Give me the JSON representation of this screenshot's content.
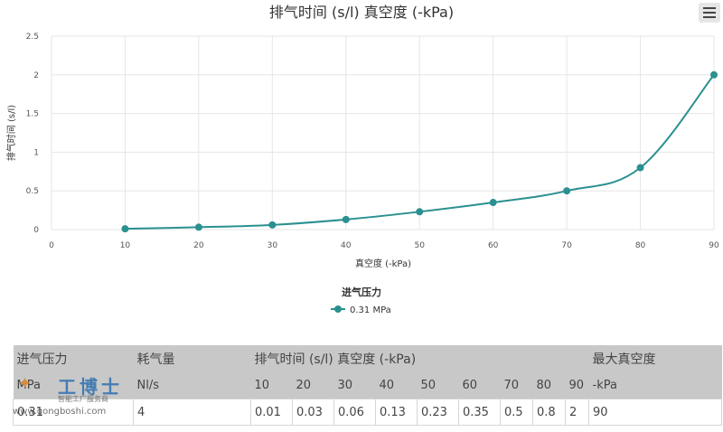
{
  "menu_icon": "hamburger-menu-icon",
  "chart_data": {
    "type": "line",
    "title": "排气时间 (s/l) 真空度 (-kPa)",
    "xlabel": "真空度 (-kPa)",
    "ylabel": "排气时间 (s/l)",
    "xlim": [
      0,
      90
    ],
    "ylim": [
      0,
      2.5
    ],
    "x_ticks": [
      "0",
      "10",
      "20",
      "30",
      "40",
      "50",
      "60",
      "70",
      "80",
      "90"
    ],
    "y_ticks": [
      "0",
      "0.5",
      "1",
      "1.5",
      "2",
      "2.5"
    ],
    "grid": true,
    "legend_title": "进气压力",
    "legend_position": "bottom-center",
    "color": "#2a9090",
    "series": [
      {
        "name": "0.31 MPa",
        "x": [
          10,
          20,
          30,
          40,
          50,
          60,
          70,
          80,
          90
        ],
        "values": [
          0.01,
          0.03,
          0.06,
          0.13,
          0.23,
          0.35,
          0.5,
          0.8,
          2
        ]
      }
    ]
  },
  "table": {
    "header1": {
      "pressure": "进气压力",
      "consumption": "耗气量",
      "exhaust": "排气时间 (s/l) 真空度 (-kPa)",
      "max_vacuum": "最大真空度"
    },
    "header2": {
      "pressure_unit": "MPa",
      "consumption_unit": "Nl/s",
      "levels": [
        "10",
        "20",
        "30",
        "40",
        "50",
        "60",
        "70",
        "80",
        "90"
      ],
      "max_vacuum_unit": "-kPa"
    },
    "row": {
      "pressure": "0.31",
      "consumption": "4",
      "times": [
        "0.01",
        "0.03",
        "0.06",
        "0.13",
        "0.23",
        "0.35",
        "0.5",
        "0.8",
        "2"
      ],
      "max_vacuum": "90"
    }
  },
  "watermark": {
    "title": "工博士",
    "subtitle": "智能工厂服务商",
    "url": "www.gongboshi.com"
  }
}
